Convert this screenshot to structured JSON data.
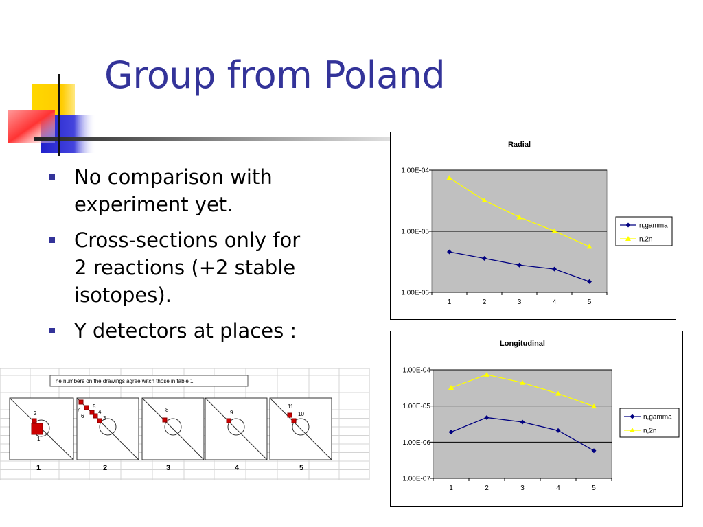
{
  "title": "Group from Poland",
  "bullets": [
    {
      "line1": "No comparison with",
      "line2": "experiment yet.",
      "line3": ""
    },
    {
      "line1": "Cross-sections only for",
      "line2": "2 reactions (+2 stable",
      "line3": "isotopes)."
    },
    {
      "line1": "Y detectors at places :",
      "line2": "",
      "line3": ""
    }
  ],
  "colors": {
    "title": "#333399",
    "bullet": "#333399",
    "plot_area": "#c0c0c0",
    "series_gamma": "#000080",
    "series_2n": "#ffff00"
  },
  "chart_data": [
    {
      "type": "line",
      "title": "Radial",
      "categories": [
        "1",
        "2",
        "3",
        "4",
        "5"
      ],
      "y_scale": "log",
      "ylim": [
        1e-06,
        0.0001
      ],
      "y_ticks": [
        "1.00E-04",
        "1.00E-05",
        "1.00E-06"
      ],
      "grid": true,
      "legend": "right",
      "series": [
        {
          "name": "n,gamma",
          "marker": "diamond",
          "values": [
            4.6e-06,
            3.6e-06,
            2.8e-06,
            2.4e-06,
            1.5e-06
          ]
        },
        {
          "name": "n,2n",
          "marker": "triangle",
          "values": [
            7.5e-05,
            3.2e-05,
            1.7e-05,
            1.01e-05,
            5.6e-06
          ]
        }
      ]
    },
    {
      "type": "line",
      "title": "Longitudinal",
      "categories": [
        "1",
        "2",
        "3",
        "4",
        "5"
      ],
      "y_scale": "log",
      "ylim": [
        1e-07,
        0.0001
      ],
      "y_ticks": [
        "1.00E-04",
        "1.00E-05",
        "1.00E-06",
        "1.00E-07"
      ],
      "grid": true,
      "legend": "right",
      "series": [
        {
          "name": "n,gamma",
          "marker": "diamond",
          "values": [
            1.9e-06,
            4.8e-06,
            3.6e-06,
            2.1e-06,
            5.8e-07
          ]
        },
        {
          "name": "n,2n",
          "marker": "triangle",
          "values": [
            3.2e-05,
            7.4e-05,
            4.4e-05,
            2.2e-05,
            9.8e-06
          ]
        }
      ]
    }
  ],
  "spreadsheet": {
    "note": "The numbers on the drawings agree witch those in table 1.",
    "panels": [
      {
        "label": "1",
        "detectors": [
          {
            "n": "1"
          },
          {
            "n": "2"
          }
        ]
      },
      {
        "label": "2",
        "detectors": [
          {
            "n": "7"
          },
          {
            "n": "5"
          },
          {
            "n": "6"
          },
          {
            "n": "4"
          },
          {
            "n": "3"
          }
        ]
      },
      {
        "label": "3",
        "detectors": [
          {
            "n": "8"
          }
        ]
      },
      {
        "label": "4",
        "detectors": [
          {
            "n": "9"
          }
        ]
      },
      {
        "label": "5",
        "detectors": [
          {
            "n": "11"
          },
          {
            "n": "10"
          }
        ]
      }
    ]
  }
}
